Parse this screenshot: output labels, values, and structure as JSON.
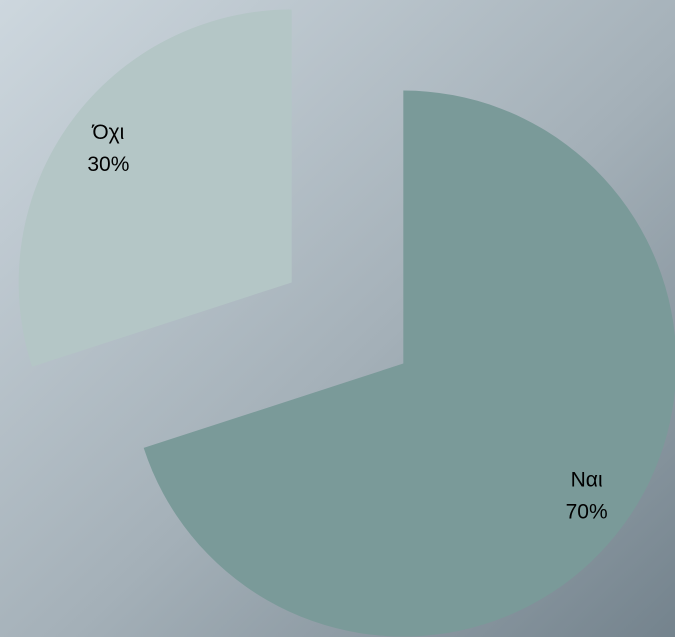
{
  "chart_data": {
    "type": "pie",
    "categories": [
      "Ναι",
      "Όχι"
    ],
    "values": [
      70,
      30
    ],
    "value_labels": [
      "70%",
      "30%"
    ],
    "colors": [
      "#7a9a99",
      "#b4c6c6"
    ]
  }
}
